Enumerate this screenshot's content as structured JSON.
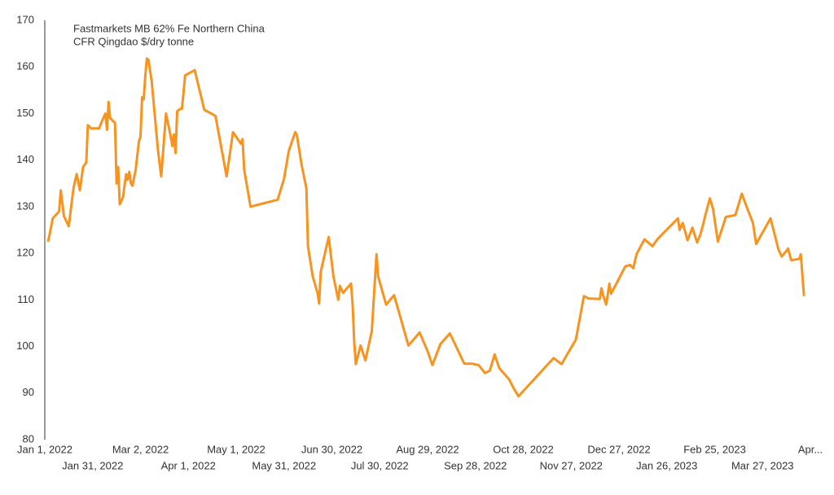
{
  "chart_data": {
    "type": "line",
    "title_lines": [
      "Fastmarkets MB 62% Fe Northern China",
      "CFR Qingdao $/dry tonne"
    ],
    "x": [
      "2022-01-03",
      "2022-01-04",
      "2022-01-06",
      "2022-01-10",
      "2022-01-11",
      "2022-01-13",
      "2022-01-16",
      "2022-01-19",
      "2022-01-21",
      "2022-01-23",
      "2022-01-25",
      "2022-01-27",
      "2022-01-28",
      "2022-01-30",
      "2022-02-04",
      "2022-02-06",
      "2022-02-08",
      "2022-02-09",
      "2022-02-10",
      "2022-02-11",
      "2022-02-14",
      "2022-02-15",
      "2022-02-16",
      "2022-02-17",
      "2022-02-19",
      "2022-02-21",
      "2022-02-22",
      "2022-02-23",
      "2022-02-24",
      "2022-02-25",
      "2022-02-27",
      "2022-03-01",
      "2022-03-02",
      "2022-03-03",
      "2022-03-04",
      "2022-03-05",
      "2022-03-06",
      "2022-03-07",
      "2022-03-09",
      "2022-03-13",
      "2022-03-15",
      "2022-03-18",
      "2022-03-21",
      "2022-03-22",
      "2022-03-23",
      "2022-03-24",
      "2022-03-25",
      "2022-03-27",
      "2022-03-28",
      "2022-03-30",
      "2022-04-05",
      "2022-04-11",
      "2022-04-18",
      "2022-04-25",
      "2022-04-29",
      "2022-05-04",
      "2022-05-05",
      "2022-05-06",
      "2022-05-10",
      "2022-05-27",
      "2022-05-31",
      "2022-06-03",
      "2022-06-07",
      "2022-06-08",
      "2022-06-11",
      "2022-06-14",
      "2022-06-15",
      "2022-06-18",
      "2022-06-21",
      "2022-06-22",
      "2022-06-23",
      "2022-06-28",
      "2022-07-01",
      "2022-07-04",
      "2022-07-05",
      "2022-07-07",
      "2022-07-12",
      "2022-07-13",
      "2022-07-14",
      "2022-07-15",
      "2022-07-18",
      "2022-07-21",
      "2022-07-25",
      "2022-07-28",
      "2022-07-29",
      "2022-08-03",
      "2022-08-08",
      "2022-08-17",
      "2022-08-24",
      "2022-08-29",
      "2022-09-01",
      "2022-09-06",
      "2022-09-12",
      "2022-09-21",
      "2022-09-26",
      "2022-09-30",
      "2022-10-04",
      "2022-10-07",
      "2022-10-10",
      "2022-10-13",
      "2022-10-19",
      "2022-10-22",
      "2022-10-25",
      "2022-11-16",
      "2022-11-21",
      "2022-11-30",
      "2022-12-05",
      "2022-12-08",
      "2022-12-15",
      "2022-12-16",
      "2022-12-17",
      "2022-12-19",
      "2022-12-21",
      "2022-12-22",
      "2022-12-31",
      "2023-01-03",
      "2023-01-05",
      "2023-01-07",
      "2023-01-12",
      "2023-01-17",
      "2023-01-20",
      "2023-02-02",
      "2023-02-03",
      "2023-02-05",
      "2023-02-08",
      "2023-02-11",
      "2023-02-14",
      "2023-02-16",
      "2023-02-18",
      "2023-02-19",
      "2023-02-22",
      "2023-02-24",
      "2023-02-27",
      "2023-03-04",
      "2023-03-10",
      "2023-03-14",
      "2023-03-17",
      "2023-03-21",
      "2023-03-23",
      "2023-04-01",
      "2023-04-06",
      "2023-04-08",
      "2023-04-11",
      "2023-04-12",
      "2023-04-14",
      "2023-04-19",
      "2023-04-20",
      "2023-04-22"
    ],
    "series": [
      {
        "color": "#f7931e",
        "values": [
          122.5,
          124,
          127.5,
          129,
          133.5,
          128,
          125.8,
          134,
          137,
          133.5,
          138.5,
          139.5,
          147.5,
          146.8,
          146.8,
          148.5,
          150,
          146.5,
          152.5,
          149,
          148,
          135,
          138.5,
          130.5,
          132,
          137,
          135.8,
          137.5,
          135,
          134.5,
          138,
          144,
          145,
          153.5,
          153,
          158,
          161.8,
          161.5,
          157,
          142,
          136.5,
          150,
          145,
          143,
          145.5,
          141.5,
          150.5,
          151,
          151,
          158.2,
          159.3,
          150.8,
          149.5,
          136.5,
          146,
          143.5,
          144.5,
          138,
          130,
          131.5,
          136,
          142,
          146,
          145.5,
          139,
          134,
          121.5,
          115,
          111.5,
          109.2,
          116,
          123.5,
          115,
          110,
          113,
          111.5,
          113.5,
          109,
          101,
          96.2,
          100.2,
          97,
          103.2,
          119.8,
          115,
          109,
          111,
          100.2,
          103,
          99,
          96,
          100.5,
          102.8,
          96.3,
          96.3,
          96,
          94.3,
          94.8,
          98.3,
          95.3,
          93,
          91,
          89.3,
          97.5,
          96.2,
          101.5,
          110.8,
          110.3,
          110.2,
          112.5,
          111,
          109,
          113.5,
          111.3,
          117.2,
          117.5,
          116.8,
          119.8,
          123,
          121.5,
          123,
          127.5,
          125,
          126.5,
          122.8,
          125.5,
          122.3,
          124,
          126.5,
          128,
          131.8,
          129.5,
          122.5,
          127.8,
          128.2,
          132.8,
          130,
          126.5,
          122,
          127.5,
          120.8,
          119.3,
          120.5,
          121,
          118.5,
          118.8,
          119.8,
          110.8
        ]
      }
    ],
    "xlim": [
      "2022-01-01",
      "2023-04-26"
    ],
    "xticks": [
      {
        "value": "2022-01-01",
        "label": "Jan 1, 2022"
      },
      {
        "value": "2022-01-31",
        "label": "Jan 31, 2022"
      },
      {
        "value": "2022-03-02",
        "label": "Mar 2, 2022"
      },
      {
        "value": "2022-04-01",
        "label": "Apr 1, 2022"
      },
      {
        "value": "2022-05-01",
        "label": "May 1, 2022"
      },
      {
        "value": "2022-05-31",
        "label": "May 31, 2022"
      },
      {
        "value": "2022-06-30",
        "label": "Jun 30, 2022"
      },
      {
        "value": "2022-07-30",
        "label": "Jul 30, 2022"
      },
      {
        "value": "2022-08-29",
        "label": "Aug 29, 2022"
      },
      {
        "value": "2022-09-28",
        "label": "Sep 28, 2022"
      },
      {
        "value": "2022-10-28",
        "label": "Oct 28, 2022"
      },
      {
        "value": "2022-11-27",
        "label": "Nov 27, 2022"
      },
      {
        "value": "2022-12-27",
        "label": "Dec 27, 2022"
      },
      {
        "value": "2023-01-26",
        "label": "Jan 26, 2023"
      },
      {
        "value": "2023-02-25",
        "label": "Feb 25, 2023"
      },
      {
        "value": "2023-03-27",
        "label": "Mar 27, 2023"
      },
      {
        "value": "2023-04-26",
        "label": "Apr..."
      }
    ],
    "ylim": [
      80,
      170
    ],
    "yticks": [
      80,
      90,
      100,
      110,
      120,
      130,
      140,
      150,
      160,
      170
    ],
    "grid": false
  }
}
